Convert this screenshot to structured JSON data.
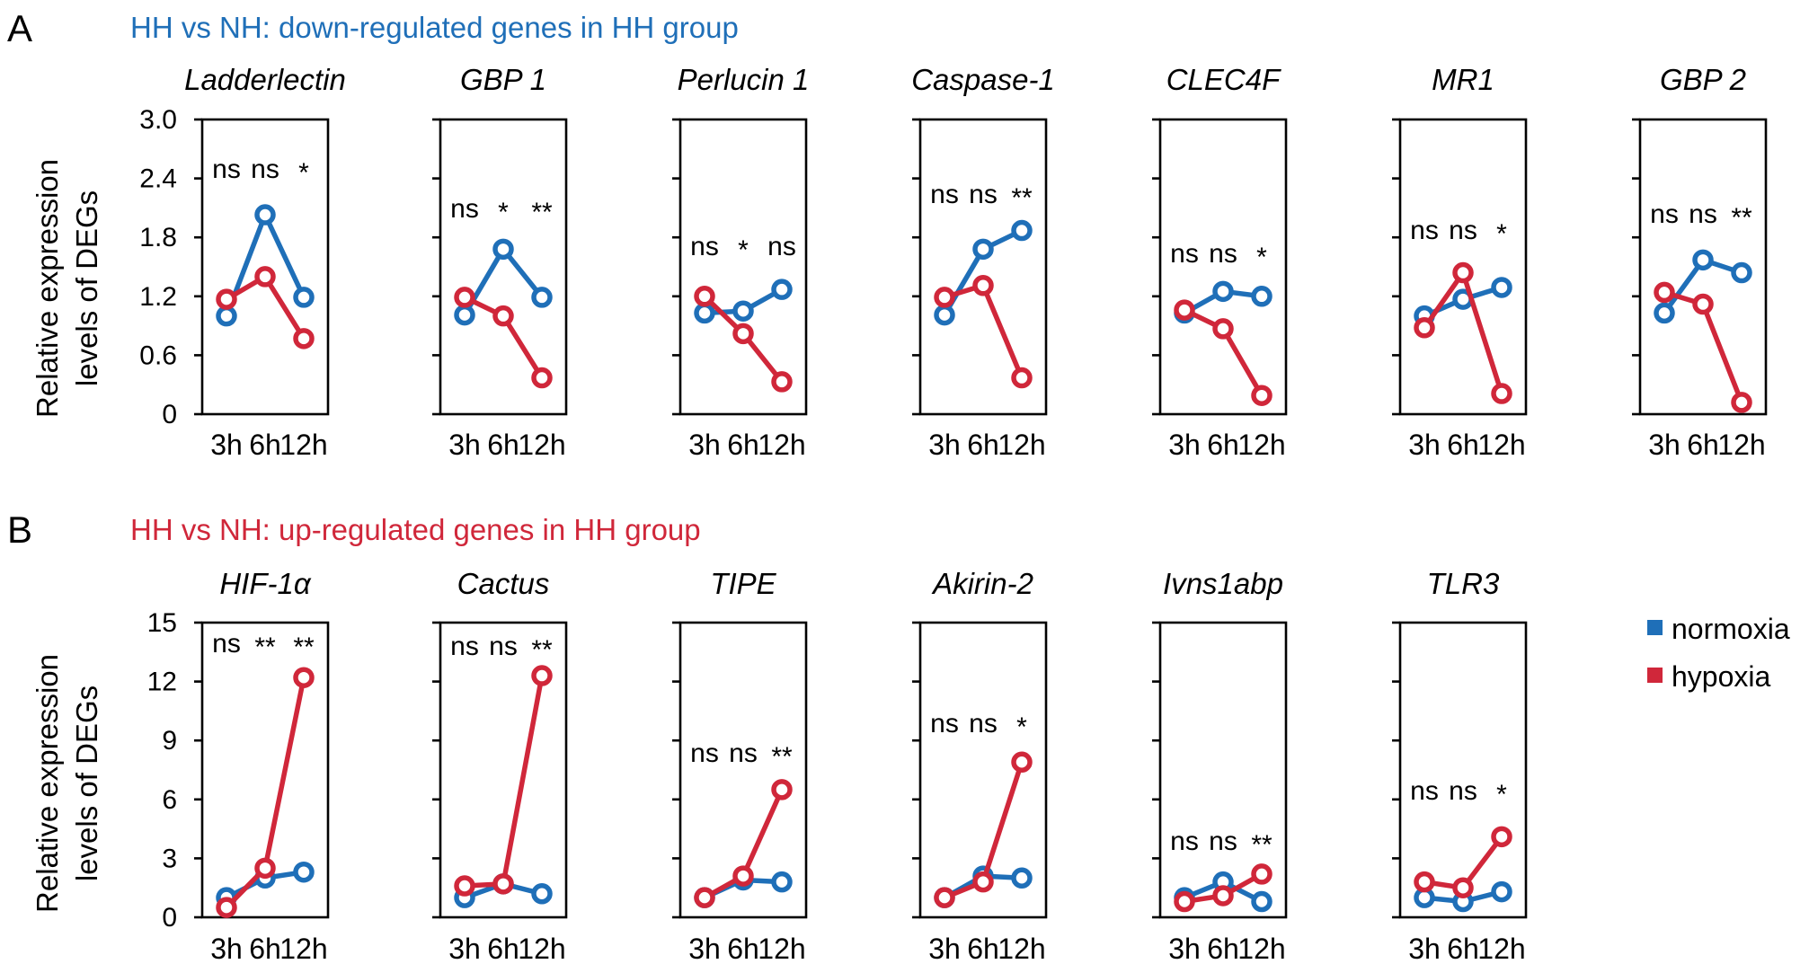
{
  "colors": {
    "normoxia": "#1f6fb8",
    "hypoxia": "#d0273a",
    "axis": "#000000"
  },
  "panels": {
    "A": {
      "letter": "A",
      "title": "HH vs NH: down-regulated genes in HH group",
      "title_color": "#1f6fb8"
    },
    "B": {
      "letter": "B",
      "title": "HH vs NH: up-regulated genes in HH group",
      "title_color": "#d0273a"
    }
  },
  "y_axis_label_lines": [
    "Relative expression",
    "levels of DEGs"
  ],
  "legend": [
    {
      "label": "normoxia",
      "series": "normoxia"
    },
    {
      "label": "hypoxia",
      "series": "hypoxia"
    }
  ],
  "chart_data": [
    {
      "panel": "A",
      "type": "line",
      "title": "Ladderlectin",
      "categories": [
        "3h",
        "6h",
        "12h"
      ],
      "ylim": [
        0,
        3.0
      ],
      "yticks": [
        0,
        0.6,
        1.2,
        1.8,
        2.4,
        3.0
      ],
      "ytick_labels": [
        "0",
        "0.6",
        "1.2",
        "1.8",
        "2.4",
        "3.0"
      ],
      "series": [
        {
          "name": "normoxia",
          "values": [
            1.0,
            2.03,
            1.19
          ]
        },
        {
          "name": "hypoxia",
          "values": [
            1.17,
            1.4,
            0.77
          ]
        }
      ],
      "significance": [
        "ns",
        "ns",
        "*"
      ]
    },
    {
      "panel": "A",
      "type": "line",
      "title": "GBP 1",
      "categories": [
        "3h",
        "6h",
        "12h"
      ],
      "ylim": [
        0,
        3.0
      ],
      "yticks": [
        0,
        0.6,
        1.2,
        1.8,
        2.4,
        3.0
      ],
      "ytick_labels": [],
      "series": [
        {
          "name": "normoxia",
          "values": [
            1.01,
            1.68,
            1.19
          ]
        },
        {
          "name": "hypoxia",
          "values": [
            1.19,
            1.0,
            0.37
          ]
        }
      ],
      "significance": [
        "ns",
        "*",
        "**"
      ]
    },
    {
      "panel": "A",
      "type": "line",
      "title": "Perlucin 1",
      "categories": [
        "3h",
        "6h",
        "12h"
      ],
      "ylim": [
        0,
        3.0
      ],
      "yticks": [
        0,
        0.6,
        1.2,
        1.8,
        2.4,
        3.0
      ],
      "ytick_labels": [],
      "series": [
        {
          "name": "normoxia",
          "values": [
            1.03,
            1.05,
            1.27
          ]
        },
        {
          "name": "hypoxia",
          "values": [
            1.2,
            0.82,
            0.33
          ]
        }
      ],
      "significance": [
        "ns",
        "*",
        "ns"
      ]
    },
    {
      "panel": "A",
      "type": "line",
      "title": "Caspase-1",
      "categories": [
        "3h",
        "6h",
        "12h"
      ],
      "ylim": [
        0,
        3.0
      ],
      "yticks": [
        0,
        0.6,
        1.2,
        1.8,
        2.4,
        3.0
      ],
      "ytick_labels": [],
      "series": [
        {
          "name": "normoxia",
          "values": [
            1.01,
            1.68,
            1.87
          ]
        },
        {
          "name": "hypoxia",
          "values": [
            1.19,
            1.31,
            0.37
          ]
        }
      ],
      "significance": [
        "ns",
        "ns",
        "**"
      ]
    },
    {
      "panel": "A",
      "type": "line",
      "title": "CLEC4F",
      "categories": [
        "3h",
        "6h",
        "12h"
      ],
      "ylim": [
        0,
        3.0
      ],
      "yticks": [
        0,
        0.6,
        1.2,
        1.8,
        2.4,
        3.0
      ],
      "ytick_labels": [],
      "series": [
        {
          "name": "normoxia",
          "values": [
            1.03,
            1.25,
            1.2
          ]
        },
        {
          "name": "hypoxia",
          "values": [
            1.06,
            0.87,
            0.19
          ]
        }
      ],
      "significance": [
        "ns",
        "ns",
        "*"
      ]
    },
    {
      "panel": "A",
      "type": "line",
      "title": "MR1",
      "categories": [
        "3h",
        "6h",
        "12h"
      ],
      "ylim": [
        0,
        3.0
      ],
      "yticks": [
        0,
        0.6,
        1.2,
        1.8,
        2.4,
        3.0
      ],
      "ytick_labels": [],
      "series": [
        {
          "name": "normoxia",
          "values": [
            1.0,
            1.17,
            1.29
          ]
        },
        {
          "name": "hypoxia",
          "values": [
            0.88,
            1.44,
            0.21
          ]
        }
      ],
      "significance": [
        "ns",
        "ns",
        "*"
      ]
    },
    {
      "panel": "A",
      "type": "line",
      "title": "GBP 2",
      "categories": [
        "3h",
        "6h",
        "12h"
      ],
      "ylim": [
        0,
        3.0
      ],
      "yticks": [
        0,
        0.6,
        1.2,
        1.8,
        2.4,
        3.0
      ],
      "ytick_labels": [],
      "series": [
        {
          "name": "normoxia",
          "values": [
            1.03,
            1.57,
            1.44
          ]
        },
        {
          "name": "hypoxia",
          "values": [
            1.24,
            1.12,
            0.12
          ]
        }
      ],
      "significance": [
        "ns",
        "ns",
        "**"
      ]
    },
    {
      "panel": "B",
      "type": "line",
      "title": "HIF-1α",
      "categories": [
        "3h",
        "6h",
        "12h"
      ],
      "ylim": [
        0,
        15
      ],
      "yticks": [
        0,
        3,
        6,
        9,
        12,
        15
      ],
      "ytick_labels": [
        "0",
        "3",
        "6",
        "9",
        "12",
        "15"
      ],
      "series": [
        {
          "name": "normoxia",
          "values": [
            1.0,
            2.0,
            2.3
          ]
        },
        {
          "name": "hypoxia",
          "values": [
            0.5,
            2.5,
            12.2
          ]
        }
      ],
      "significance": [
        "ns",
        "**",
        "**"
      ]
    },
    {
      "panel": "B",
      "type": "line",
      "title": "Cactus",
      "categories": [
        "3h",
        "6h",
        "12h"
      ],
      "ylim": [
        0,
        15
      ],
      "yticks": [
        0,
        3,
        6,
        9,
        12,
        15
      ],
      "ytick_labels": [],
      "series": [
        {
          "name": "normoxia",
          "values": [
            1.0,
            1.7,
            1.2
          ]
        },
        {
          "name": "hypoxia",
          "values": [
            1.6,
            1.7,
            12.3
          ]
        }
      ],
      "significance": [
        "ns",
        "ns",
        "**"
      ]
    },
    {
      "panel": "B",
      "type": "line",
      "title": "TIPE",
      "categories": [
        "3h",
        "6h",
        "12h"
      ],
      "ylim": [
        0,
        15
      ],
      "yticks": [
        0,
        3,
        6,
        9,
        12,
        15
      ],
      "ytick_labels": [],
      "series": [
        {
          "name": "normoxia",
          "values": [
            1.0,
            1.9,
            1.8
          ]
        },
        {
          "name": "hypoxia",
          "values": [
            1.0,
            2.1,
            6.5
          ]
        }
      ],
      "significance": [
        "ns",
        "ns",
        "**"
      ]
    },
    {
      "panel": "B",
      "type": "line",
      "title": "Akirin-2",
      "categories": [
        "3h",
        "6h",
        "12h"
      ],
      "ylim": [
        0,
        15
      ],
      "yticks": [
        0,
        3,
        6,
        9,
        12,
        15
      ],
      "ytick_labels": [],
      "series": [
        {
          "name": "normoxia",
          "values": [
            1.0,
            2.1,
            2.0
          ]
        },
        {
          "name": "hypoxia",
          "values": [
            1.0,
            1.8,
            7.9
          ]
        }
      ],
      "significance": [
        "ns",
        "ns",
        "*"
      ]
    },
    {
      "panel": "B",
      "type": "line",
      "title": "Ivns1abp",
      "categories": [
        "3h",
        "6h",
        "12h"
      ],
      "ylim": [
        0,
        15
      ],
      "yticks": [
        0,
        3,
        6,
        9,
        12,
        15
      ],
      "ytick_labels": [],
      "series": [
        {
          "name": "normoxia",
          "values": [
            1.0,
            1.8,
            0.8
          ]
        },
        {
          "name": "hypoxia",
          "values": [
            0.8,
            1.1,
            2.2
          ]
        }
      ],
      "significance": [
        "ns",
        "ns",
        "**"
      ]
    },
    {
      "panel": "B",
      "type": "line",
      "title": "TLR3",
      "categories": [
        "3h",
        "6h",
        "12h"
      ],
      "ylim": [
        0,
        15
      ],
      "yticks": [
        0,
        3,
        6,
        9,
        12,
        15
      ],
      "ytick_labels": [],
      "series": [
        {
          "name": "normoxia",
          "values": [
            1.0,
            0.8,
            1.3
          ]
        },
        {
          "name": "hypoxia",
          "values": [
            1.8,
            1.5,
            4.1
          ]
        }
      ],
      "significance": [
        "ns",
        "ns",
        "*"
      ]
    }
  ]
}
